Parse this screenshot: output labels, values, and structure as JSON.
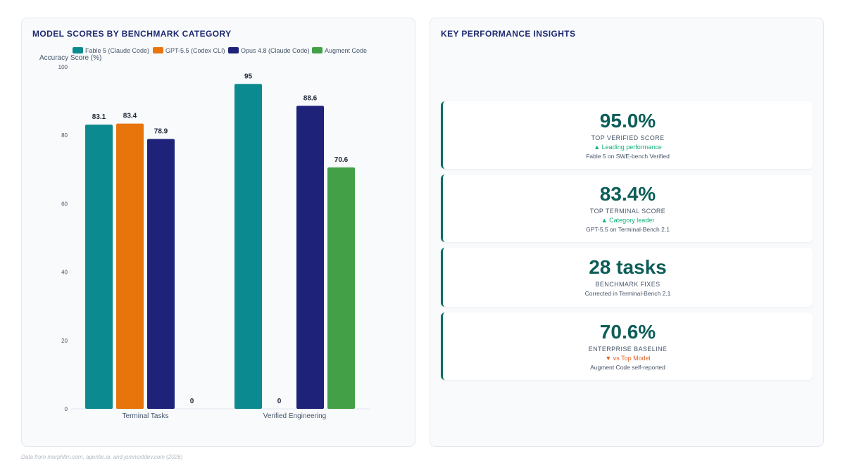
{
  "chart_panel": {
    "title": "MODEL SCORES BY BENCHMARK CATEGORY"
  },
  "insights_panel": {
    "title": "KEY PERFORMANCE INSIGHTS"
  },
  "chart_data": {
    "type": "bar",
    "title": "MODEL SCORES BY BENCHMARK CATEGORY",
    "ylabel": "Accuracy Score (%)",
    "xlabel": "",
    "ylim": [
      0,
      100
    ],
    "yticks": [
      0,
      20,
      40,
      60,
      80,
      100
    ],
    "grid": false,
    "legend_position": "top",
    "categories": [
      "Terminal Tasks",
      "Verified Engineering"
    ],
    "series": [
      {
        "name": "Fable 5 (Claude Code)",
        "color": "#0b8a8f",
        "values": [
          83.1,
          95
        ]
      },
      {
        "name": "GPT-5.5 (Codex CLI)",
        "color": "#e8740c",
        "values": [
          83.4,
          0
        ]
      },
      {
        "name": "Opus 4.8 (Claude Code)",
        "color": "#1e2278",
        "values": [
          78.9,
          88.6
        ]
      },
      {
        "name": "Augment Code",
        "color": "#43a047",
        "values": [
          0,
          70.6
        ]
      }
    ]
  },
  "insights": [
    {
      "value": "95.0%",
      "label": "TOP VERIFIED SCORE",
      "trend": "▲ Leading performance",
      "trend_dir": "up",
      "sub": "Fable 5 on SWE-bench Verified"
    },
    {
      "value": "83.4%",
      "label": "TOP TERMINAL SCORE",
      "trend": "▲ Category leader",
      "trend_dir": "up",
      "sub": "GPT-5.5 on Terminal-Bench 2.1"
    },
    {
      "value": "28 tasks",
      "label": "BENCHMARK FIXES",
      "trend": "",
      "trend_dir": "",
      "sub": "Corrected in Terminal-Bench 2.1"
    },
    {
      "value": "70.6%",
      "label": "ENTERPRISE BASELINE",
      "trend": "▼ vs Top Model",
      "trend_dir": "down",
      "sub": "Augment Code self-reported"
    }
  ],
  "footnote": "Data from morphllm.com, agentic.ai, and jomnextdev.com (2026)"
}
